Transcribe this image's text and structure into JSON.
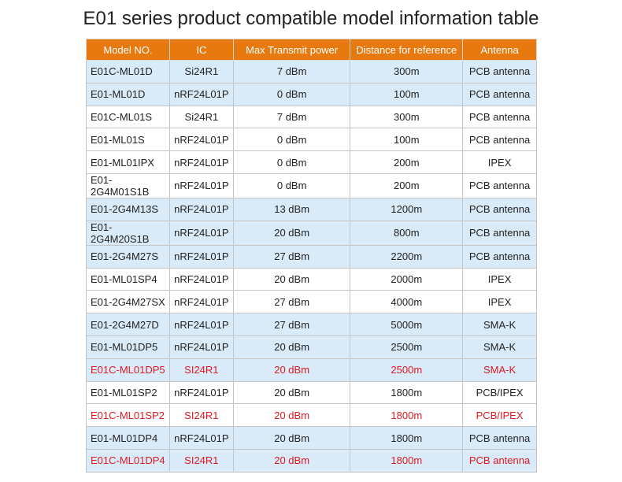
{
  "title": "E01 series product compatible model information table",
  "colors": {
    "header": "#e8790f",
    "row_highlight": "#d9eaf9",
    "red_text": "#e0191f"
  },
  "headers": [
    "Model NO.",
    "IC",
    "Max Transmit power",
    "Distance for reference",
    "Antenna"
  ],
  "rows": [
    {
      "cells": [
        "E01C-ML01D",
        "Si24R1",
        "7 dBm",
        "300m",
        "PCB antenna"
      ],
      "blue": true,
      "red": false
    },
    {
      "cells": [
        "E01-ML01D",
        "nRF24L01P",
        "0 dBm",
        "100m",
        "PCB antenna"
      ],
      "blue": true,
      "red": false
    },
    {
      "cells": [
        "E01C-ML01S",
        "Si24R1",
        "7 dBm",
        "300m",
        "PCB antenna"
      ],
      "blue": false,
      "red": false
    },
    {
      "cells": [
        "E01-ML01S",
        "nRF24L01P",
        "0 dBm",
        "100m",
        "PCB antenna"
      ],
      "blue": false,
      "red": false
    },
    {
      "cells": [
        "E01-ML01IPX",
        "nRF24L01P",
        "0 dBm",
        "200m",
        "IPEX"
      ],
      "blue": false,
      "red": false
    },
    {
      "cells": [
        "E01-2G4M01S1B",
        "nRF24L01P",
        "0 dBm",
        "200m",
        "PCB antenna"
      ],
      "blue": false,
      "red": false
    },
    {
      "cells": [
        "E01-2G4M13S",
        "nRF24L01P",
        "13 dBm",
        "1200m",
        "PCB antenna"
      ],
      "blue": true,
      "red": false
    },
    {
      "cells": [
        "E01-2G4M20S1B",
        "nRF24L01P",
        "20 dBm",
        "800m",
        "PCB antenna"
      ],
      "blue": true,
      "red": false
    },
    {
      "cells": [
        "E01-2G4M27S",
        "nRF24L01P",
        "27 dBm",
        "2200m",
        "PCB antenna"
      ],
      "blue": true,
      "red": false
    },
    {
      "cells": [
        "E01-ML01SP4",
        "nRF24L01P",
        "20 dBm",
        "2000m",
        "IPEX"
      ],
      "blue": false,
      "red": false
    },
    {
      "cells": [
        "E01-2G4M27SX",
        "nRF24L01P",
        "27 dBm",
        "4000m",
        "IPEX"
      ],
      "blue": false,
      "red": false
    },
    {
      "cells": [
        "E01-2G4M27D",
        "nRF24L01P",
        "27 dBm",
        "5000m",
        "SMA-K"
      ],
      "blue": true,
      "red": false
    },
    {
      "cells": [
        "E01-ML01DP5",
        "nRF24L01P",
        "20 dBm",
        "2500m",
        "SMA-K"
      ],
      "blue": true,
      "red": false
    },
    {
      "cells": [
        "E01C-ML01DP5",
        "SI24R1",
        "20 dBm",
        "2500m",
        "SMA-K"
      ],
      "blue": true,
      "red": true
    },
    {
      "cells": [
        "E01-ML01SP2",
        "nRF24L01P",
        "20 dBm",
        "1800m",
        "PCB/IPEX"
      ],
      "blue": false,
      "red": false
    },
    {
      "cells": [
        "E01C-ML01SP2",
        "SI24R1",
        "20 dBm",
        "1800m",
        "PCB/IPEX"
      ],
      "blue": false,
      "red": true
    },
    {
      "cells": [
        "E01-ML01DP4",
        "nRF24L01P",
        "20 dBm",
        "1800m",
        "PCB antenna"
      ],
      "blue": true,
      "red": false
    },
    {
      "cells": [
        "E01C-ML01DP4",
        "SI24R1",
        "20 dBm",
        "1800m",
        "PCB antenna"
      ],
      "blue": true,
      "red": true
    }
  ]
}
